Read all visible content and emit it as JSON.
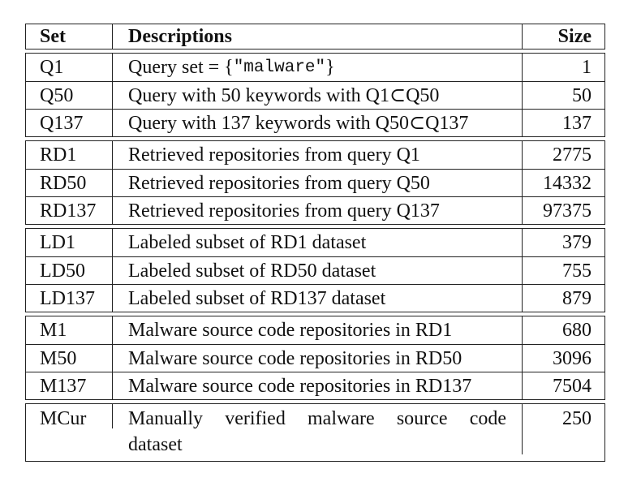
{
  "table": {
    "headers": {
      "set": "Set",
      "descriptions": "Descriptions",
      "size": "Size"
    },
    "groups": [
      [
        {
          "set": "Q1",
          "desc_pre": "Query set = {",
          "desc_code": "\"malware\"",
          "desc_post": "}",
          "size": "1"
        },
        {
          "set": "Q50",
          "desc": "Query with 50 keywords with Q1⊂Q50",
          "size": "50"
        },
        {
          "set": "Q137",
          "desc": "Query with 137 keywords with Q50⊂Q137",
          "size": "137"
        }
      ],
      [
        {
          "set": "RD1",
          "desc": "Retrieved repositories from query Q1",
          "size": "2775"
        },
        {
          "set": "RD50",
          "desc": "Retrieved repositories from query Q50",
          "size": "14332"
        },
        {
          "set": "RD137",
          "desc": "Retrieved repositories from query Q137",
          "size": "97375"
        }
      ],
      [
        {
          "set": "LD1",
          "desc": "Labeled subset of RD1 dataset",
          "size": "379"
        },
        {
          "set": "LD50",
          "desc": "Labeled subset of RD50 dataset",
          "size": "755"
        },
        {
          "set": "LD137",
          "desc": "Labeled subset of RD137 dataset",
          "size": "879"
        }
      ],
      [
        {
          "set": "M1",
          "desc": "Malware source code repositories in RD1",
          "size": "680"
        },
        {
          "set": "M50",
          "desc": "Malware source code repositories in RD50",
          "size": "3096"
        },
        {
          "set": "M137",
          "desc": "Malware source code repositories in RD137",
          "size": "7504"
        }
      ]
    ],
    "last_row": {
      "set": "MCur",
      "desc_line1": [
        "Manually",
        "verified",
        "malware",
        "source",
        "code"
      ],
      "desc_line2": "dataset",
      "size": "250"
    }
  }
}
